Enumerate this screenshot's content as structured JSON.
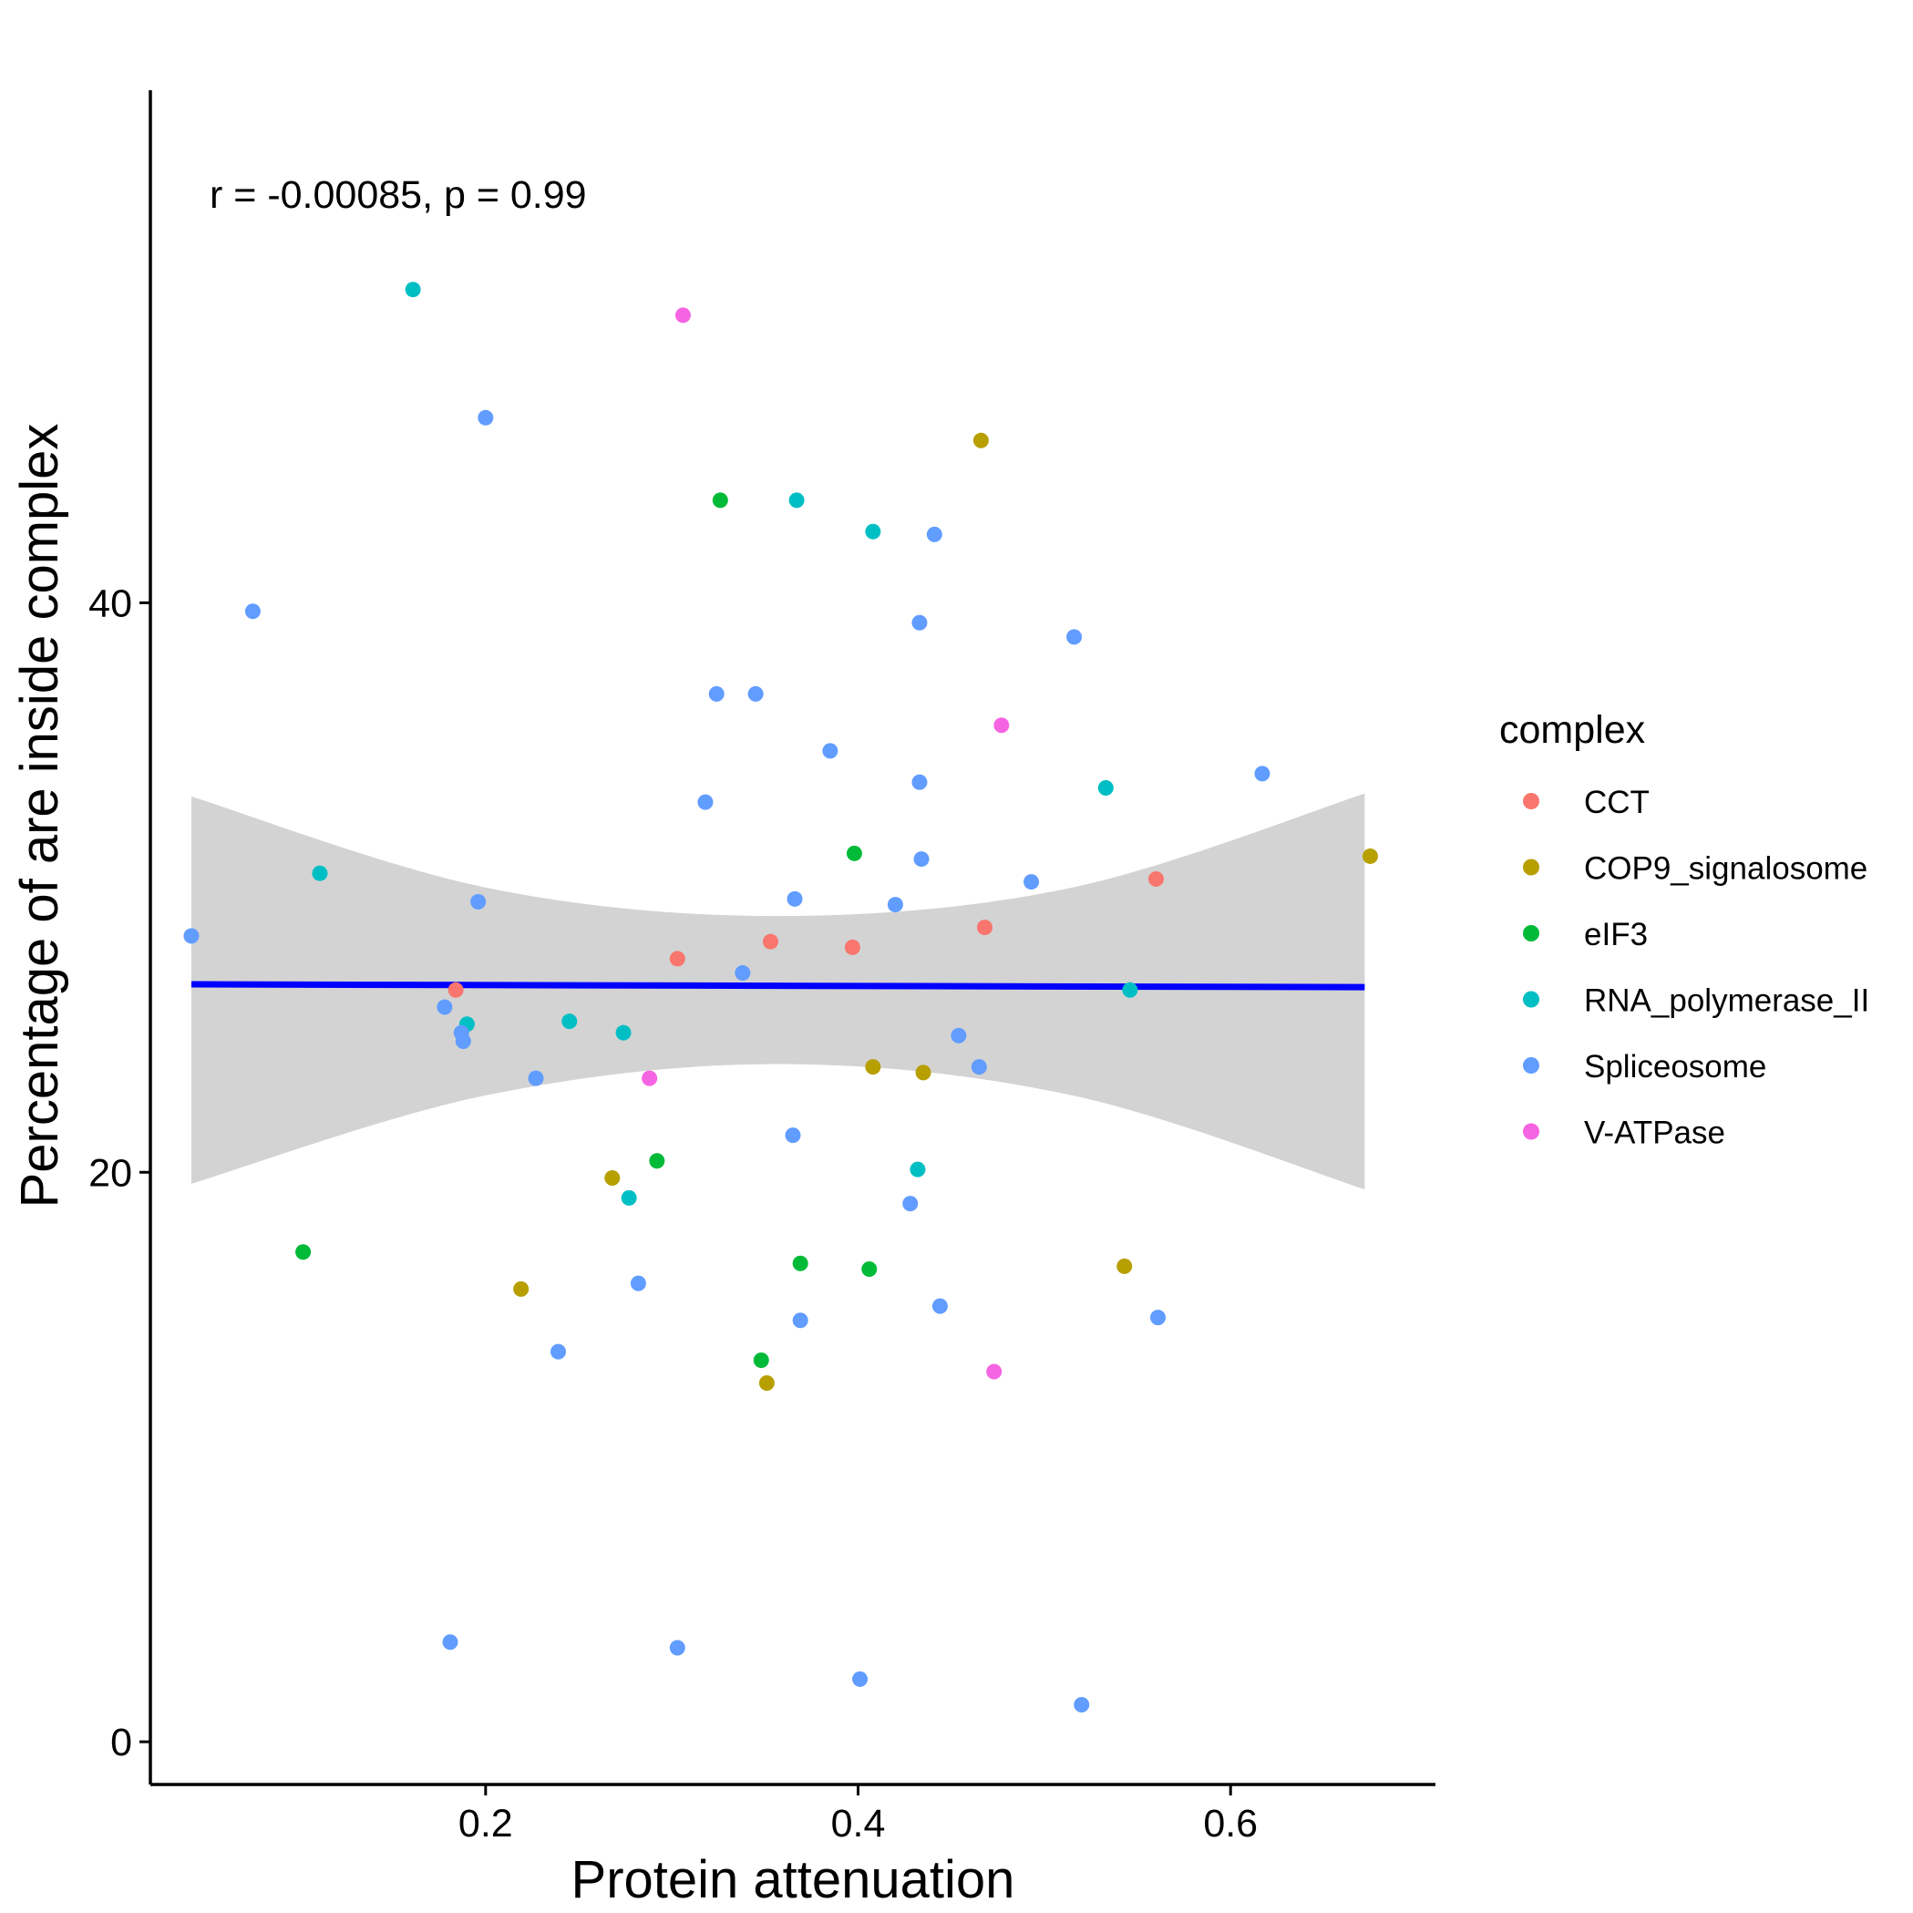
{
  "chart_data": {
    "type": "scatter",
    "xlabel": "Protein attenuation",
    "ylabel": "Percentage of are inside complex",
    "annotation": "r = -0.00085, p = 0.99",
    "xlim": [
      0.02,
      0.71
    ],
    "ylim": [
      -1.5,
      58.0
    ],
    "x_ticks": [
      0.2,
      0.4,
      0.6
    ],
    "x_tick_labels": [
      "0.2",
      "0.4",
      "0.6"
    ],
    "y_ticks": [
      0,
      20,
      40
    ],
    "y_tick_labels": [
      "0",
      "20",
      "40"
    ],
    "grid": false,
    "legend": {
      "title": "complex",
      "position": "right",
      "entries": [
        {
          "name": "CCT",
          "color": "#F8766D"
        },
        {
          "name": "COP9_signalosome",
          "color": "#B79F00"
        },
        {
          "name": "eIF3",
          "color": "#00BA38"
        },
        {
          "name": "RNA_polymerase_II",
          "color": "#00BFC4"
        },
        {
          "name": "Spliceosome",
          "color": "#619CFF"
        },
        {
          "name": "V-ATPase",
          "color": "#F564E3"
        }
      ]
    },
    "fit_line": {
      "color": "#0000FF",
      "x": [
        0.042,
        0.672
      ],
      "y": [
        26.6,
        26.5
      ]
    },
    "confidence_band": {
      "color": "#D3D3D3",
      "x": [
        0.042,
        0.2,
        0.357,
        0.515,
        0.672
      ],
      "upper": [
        33.2,
        30.0,
        29.0,
        30.0,
        33.3
      ],
      "lower": [
        19.6,
        22.7,
        23.8,
        22.7,
        19.4
      ]
    },
    "series": [
      {
        "name": "CCT",
        "points": [
          [
            0.184,
            26.4
          ],
          [
            0.303,
            27.5
          ],
          [
            0.353,
            28.1
          ],
          [
            0.397,
            27.9
          ],
          [
            0.468,
            28.6
          ],
          [
            0.56,
            30.3
          ]
        ]
      },
      {
        "name": "COP9_signalosome",
        "points": [
          [
            0.466,
            45.7
          ],
          [
            0.675,
            31.1
          ],
          [
            0.408,
            23.7
          ],
          [
            0.435,
            23.5
          ],
          [
            0.268,
            19.8
          ],
          [
            0.219,
            15.9
          ],
          [
            0.543,
            16.7
          ],
          [
            0.351,
            12.6
          ]
        ]
      },
      {
        "name": "eIF3",
        "points": [
          [
            0.326,
            43.6
          ],
          [
            0.398,
            31.2
          ],
          [
            0.292,
            20.4
          ],
          [
            0.102,
            17.2
          ],
          [
            0.369,
            16.8
          ],
          [
            0.406,
            16.6
          ],
          [
            0.348,
            13.4
          ]
        ]
      },
      {
        "name": "RNA_polymerase_II",
        "points": [
          [
            0.161,
            51.0
          ],
          [
            0.367,
            43.6
          ],
          [
            0.408,
            42.5
          ],
          [
            0.533,
            33.5
          ],
          [
            0.111,
            30.5
          ],
          [
            0.546,
            26.4
          ],
          [
            0.19,
            25.2
          ],
          [
            0.245,
            25.3
          ],
          [
            0.274,
            24.9
          ],
          [
            0.432,
            20.1
          ],
          [
            0.277,
            19.1
          ]
        ]
      },
      {
        "name": "Spliceosome",
        "points": [
          [
            0.2,
            46.5
          ],
          [
            0.441,
            42.4
          ],
          [
            0.075,
            39.7
          ],
          [
            0.433,
            39.3
          ],
          [
            0.516,
            38.8
          ],
          [
            0.324,
            36.8
          ],
          [
            0.345,
            36.8
          ],
          [
            0.385,
            34.8
          ],
          [
            0.617,
            34.0
          ],
          [
            0.433,
            33.7
          ],
          [
            0.318,
            33.0
          ],
          [
            0.434,
            31.0
          ],
          [
            0.493,
            30.2
          ],
          [
            0.366,
            29.6
          ],
          [
            0.196,
            29.5
          ],
          [
            0.42,
            29.4
          ],
          [
            0.042,
            28.3
          ],
          [
            0.338,
            27.0
          ],
          [
            0.178,
            25.8
          ],
          [
            0.187,
            24.9
          ],
          [
            0.188,
            24.6
          ],
          [
            0.454,
            24.8
          ],
          [
            0.465,
            23.7
          ],
          [
            0.227,
            23.3
          ],
          [
            0.365,
            21.3
          ],
          [
            0.428,
            18.9
          ],
          [
            0.282,
            16.1
          ],
          [
            0.444,
            15.3
          ],
          [
            0.369,
            14.8
          ],
          [
            0.561,
            14.9
          ],
          [
            0.239,
            13.7
          ],
          [
            0.181,
            3.5
          ],
          [
            0.303,
            3.3
          ],
          [
            0.401,
            2.2
          ],
          [
            0.52,
            1.3
          ]
        ]
      },
      {
        "name": "V-ATPase",
        "points": [
          [
            0.306,
            50.1
          ],
          [
            0.477,
            35.7
          ],
          [
            0.288,
            23.3
          ],
          [
            0.473,
            13.0
          ]
        ]
      }
    ]
  }
}
